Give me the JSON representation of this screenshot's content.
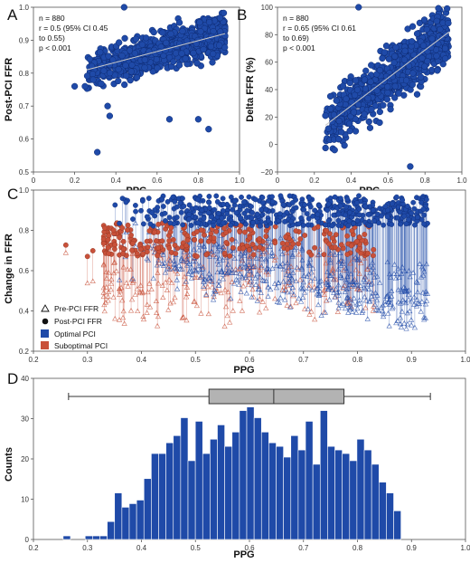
{
  "colors": {
    "optimal": "#1f4aa8",
    "optimal_stroke": "#0d2a72",
    "suboptimal": "#c8513a",
    "suboptimal_stroke": "#8a2e1c",
    "hist_fill": "#1f4aa8",
    "box_fill": "#b3b3b3"
  },
  "chart_data": [
    {
      "panel": "A",
      "type": "scatter",
      "xlabel": "PPG",
      "ylabel": "Post-PCI FFR",
      "xlim": [
        0,
        1.0
      ],
      "ylim": [
        0.5,
        1.0
      ],
      "xticks": [
        "0",
        "0.2",
        "0.4",
        "0.6",
        "0.8",
        "1.0"
      ],
      "yticks": [
        "0.5",
        "0.6",
        "0.7",
        "0.8",
        "0.9",
        "1.0"
      ],
      "stats": [
        "n = 880",
        "r = 0.5 (95% CI 0.45",
        "to 0.55)",
        "p < 0.001"
      ],
      "trend": {
        "x": [
          0.26,
          0.93
        ],
        "y": [
          0.81,
          0.92
        ]
      },
      "marker_color": "optimal",
      "n": 880,
      "cloud": {
        "x_range": [
          0.26,
          0.93
        ],
        "y_center": 0.865,
        "y_spread": 0.045
      },
      "outliers": [
        [
          0.31,
          0.56
        ],
        [
          0.2,
          0.76
        ],
        [
          0.25,
          0.76
        ],
        [
          0.29,
          0.78
        ],
        [
          0.44,
          1.0
        ],
        [
          0.85,
          0.63
        ],
        [
          0.8,
          0.66
        ],
        [
          0.66,
          0.66
        ],
        [
          0.37,
          0.67
        ],
        [
          0.36,
          0.7
        ]
      ]
    },
    {
      "panel": "B",
      "type": "scatter",
      "xlabel": "PPG",
      "ylabel": "Delta FFR (%)",
      "xlim": [
        0,
        1.0
      ],
      "ylim": [
        -20,
        100
      ],
      "xticks": [
        "0",
        "0.2",
        "0.4",
        "0.6",
        "0.8",
        "1.0"
      ],
      "yticks": [
        "−20",
        "0",
        "20",
        "40",
        "60",
        "80",
        "100"
      ],
      "stats": [
        "n = 880",
        "r = 0.65 (95% CI 0.61",
        "to 0.69)",
        "p < 0.001"
      ],
      "trend": {
        "x": [
          0.26,
          0.93
        ],
        "y": [
          14,
          82
        ]
      },
      "marker_color": "optimal",
      "n": 880,
      "cloud": {
        "x_range": [
          0.26,
          0.93
        ],
        "y_spread": 14
      },
      "outliers": [
        [
          0.72,
          -16
        ],
        [
          0.31,
          -4
        ],
        [
          0.44,
          100
        ],
        [
          0.26,
          21
        ]
      ]
    },
    {
      "panel": "C",
      "type": "scatter",
      "xlabel": "PPG",
      "ylabel": "Change in FFR",
      "xlim": [
        0.2,
        1.0
      ],
      "ylim": [
        0.2,
        1.05
      ],
      "xticks": [
        "0.2",
        "0.3",
        "0.4",
        "0.5",
        "0.6",
        "0.7",
        "0.8",
        "0.9",
        "1.0"
      ],
      "yticks": [
        "0.2",
        "0.4",
        "0.6",
        "0.8",
        "1.0"
      ],
      "legend_position": "bottom-left",
      "legend": [
        {
          "label": "Pre-PCI FFR",
          "symbol": "open-triangle"
        },
        {
          "label": "Post-PCI FFR",
          "symbol": "filled-circle"
        },
        {
          "label": "Optimal PCI",
          "symbol": "square",
          "color": "optimal"
        },
        {
          "label": "Suboptimal PCI",
          "symbol": "square",
          "color": "suboptimal"
        }
      ],
      "series": [
        {
          "name": "Optimal PCI",
          "post_ffr_range": [
            0.86,
            1.02
          ],
          "pre_ffr_min": 0.3,
          "x_range": [
            0.3,
            0.93
          ]
        },
        {
          "name": "Suboptimal PCI",
          "post_ffr_range": [
            0.7,
            0.88
          ],
          "pre_ffr_min": 0.2,
          "x_range": [
            0.26,
            0.88
          ]
        }
      ]
    },
    {
      "panel": "D",
      "type": "bar",
      "xlabel": "PPG",
      "ylabel": "Counts",
      "xlim": [
        0.2,
        1.0
      ],
      "ylim": [
        0,
        45
      ],
      "xticks": [
        "0.2",
        "0.3",
        "0.4",
        "0.5",
        "0.6",
        "0.7",
        "0.8",
        "0.9",
        "1.0"
      ],
      "yticks": [
        "0",
        "10",
        "20",
        "30",
        "40"
      ],
      "bin_start": 0.255,
      "bin_width": 0.0136,
      "counts": [
        1,
        0,
        0,
        1,
        1,
        1,
        5,
        13,
        9,
        10,
        11,
        17,
        24,
        24,
        27,
        29,
        34,
        22,
        33,
        24,
        28,
        32,
        26,
        30,
        36,
        37,
        34,
        30,
        27,
        26,
        23,
        29,
        25,
        33,
        21,
        36,
        26,
        25,
        24,
        22,
        28,
        25,
        21,
        16,
        13,
        8
      ],
      "boxplot": {
        "min": 0.265,
        "q1": 0.525,
        "median": 0.645,
        "q3": 0.775,
        "max": 0.935
      }
    }
  ]
}
